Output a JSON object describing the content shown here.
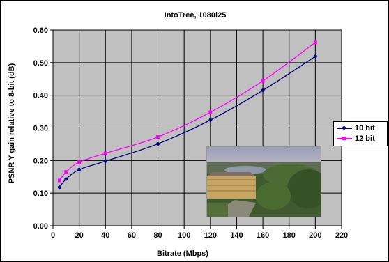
{
  "chart_data": {
    "type": "line",
    "title": "IntoTree, 1080i25",
    "xlabel": "Bitrate (Mbps)",
    "ylabel": "PSNR Y gain relative to 8-bit (dB)",
    "xlim": [
      0,
      220
    ],
    "ylim": [
      0,
      0.6
    ],
    "x_ticks": [
      "0",
      "20",
      "40",
      "60",
      "80",
      "100",
      "120",
      "140",
      "160",
      "180",
      "200",
      "220"
    ],
    "y_ticks": [
      "0.00",
      "0.10",
      "0.20",
      "0.30",
      "0.40",
      "0.50",
      "0.60"
    ],
    "grid": true,
    "legend_position": "right",
    "series": [
      {
        "name": "10 bit",
        "color": "#000080",
        "x": [
          5,
          10,
          20,
          40,
          80,
          120,
          160,
          200
        ],
        "y": [
          0.118,
          0.143,
          0.172,
          0.198,
          0.251,
          0.324,
          0.415,
          0.519
        ]
      },
      {
        "name": "12 bit",
        "color": "#ff00ff",
        "x": [
          5,
          10,
          20,
          40,
          80,
          120,
          160,
          200
        ],
        "y": [
          0.139,
          0.165,
          0.195,
          0.222,
          0.272,
          0.348,
          0.444,
          0.562
        ]
      }
    ],
    "plot_background": "#c0c0c0"
  }
}
